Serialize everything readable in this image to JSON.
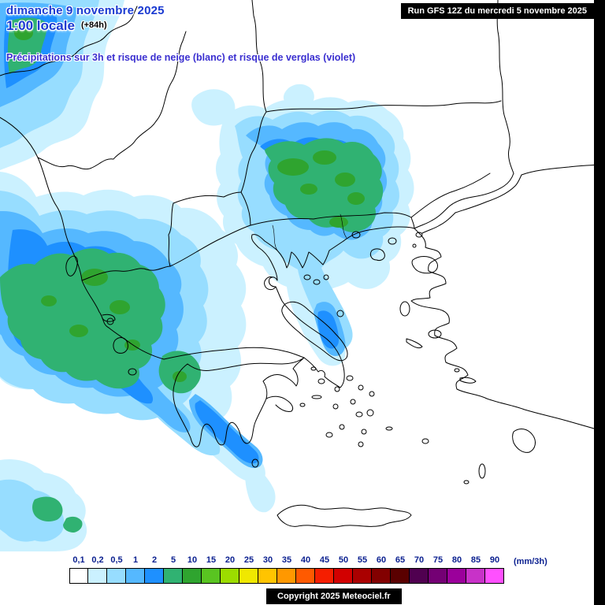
{
  "header": {
    "date_line": "dimanche 9 novembre 2025",
    "time_line": "1:00 locale",
    "offset_label": "(+84h)",
    "subtitle": "Précipitations sur 3h et risque de neige (blanc) et risque de verglas (violet)",
    "run_info": "Run GFS 12Z du mercredi 5 novembre 2025"
  },
  "legend": {
    "unit": "(mm/3h)",
    "stops": [
      {
        "label": "0,1",
        "color": "#FFFFFF"
      },
      {
        "label": "0,2",
        "color": "#CBF1FF"
      },
      {
        "label": "0,5",
        "color": "#97DDFF"
      },
      {
        "label": "1",
        "color": "#55B8FF"
      },
      {
        "label": "2",
        "color": "#1E90FF"
      },
      {
        "label": "5",
        "color": "#30B272"
      },
      {
        "label": "10",
        "color": "#2FA42F"
      },
      {
        "label": "15",
        "color": "#59C421"
      },
      {
        "label": "20",
        "color": "#9CDC00"
      },
      {
        "label": "25",
        "color": "#F0E800"
      },
      {
        "label": "30",
        "color": "#FFC400"
      },
      {
        "label": "35",
        "color": "#FF9800"
      },
      {
        "label": "40",
        "color": "#FF5A00"
      },
      {
        "label": "45",
        "color": "#F51E00"
      },
      {
        "label": "50",
        "color": "#D20000"
      },
      {
        "label": "55",
        "color": "#AA0000"
      },
      {
        "label": "60",
        "color": "#820000"
      },
      {
        "label": "65",
        "color": "#5A0000"
      },
      {
        "label": "70",
        "color": "#500050"
      },
      {
        "label": "75",
        "color": "#740074"
      },
      {
        "label": "80",
        "color": "#9B009B"
      },
      {
        "label": "85",
        "color": "#C832C8"
      },
      {
        "label": "90",
        "color": "#FF50FF"
      }
    ]
  },
  "footer": {
    "copyright": "Copyright 2025 Meteociel.fr"
  },
  "colors": {
    "header_text": "#1a3ad1",
    "subtitle_text": "#3a2fd0",
    "legend_text": "#0a1f8f"
  }
}
